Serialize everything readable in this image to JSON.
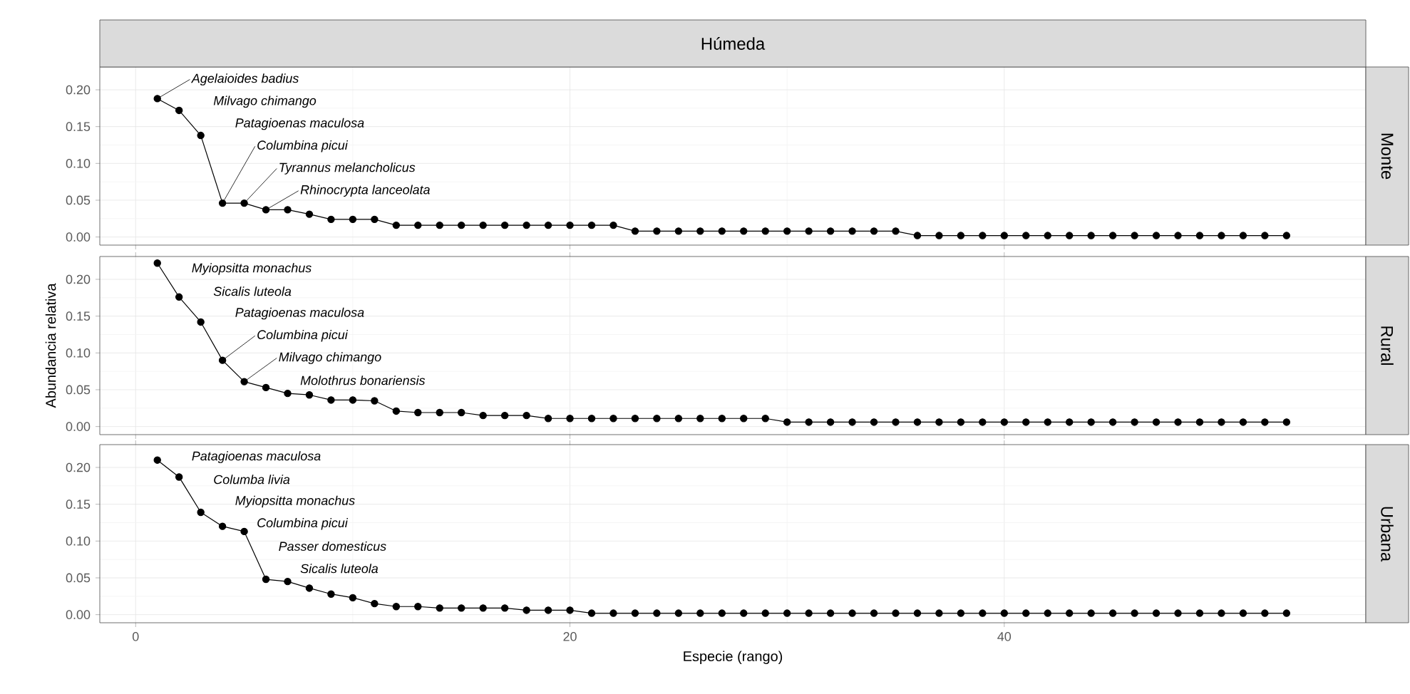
{
  "chart_data": [
    {
      "type": "line",
      "title": "Húmeda",
      "y2label": "Monte",
      "tick_labels": "y",
      "grid": true,
      "marker": "circle",
      "line_style": "solid",
      "xlim": [
        -1.65,
        56.65
      ],
      "ylim": [
        -0.011,
        0.231
      ],
      "xticks": [
        0,
        20,
        40
      ],
      "yticks": [
        {
          "value": 0,
          "label": "0.00"
        },
        {
          "value": 0.05,
          "label": "0.05"
        },
        {
          "value": 0.1,
          "label": "0.10"
        },
        {
          "value": 0.15,
          "label": "0.15"
        },
        {
          "value": 0.2,
          "label": "0.20"
        }
      ],
      "x": [
        1,
        2,
        3,
        4,
        5,
        6,
        7,
        8,
        9,
        10,
        11,
        12,
        13,
        14,
        15,
        16,
        17,
        18,
        19,
        20,
        21,
        22,
        23,
        24,
        25,
        26,
        27,
        28,
        29,
        30,
        31,
        32,
        33,
        34,
        35,
        36,
        37,
        38,
        39,
        40,
        41,
        42,
        43,
        44,
        45,
        46,
        47,
        48,
        49,
        50,
        51,
        52,
        53
      ],
      "series": [
        {
          "color": "#000000",
          "values": [
            0.188,
            0.172,
            0.138,
            0.046,
            0.046,
            0.037,
            0.037,
            0.031,
            0.024,
            0.024,
            0.024,
            0.016,
            0.016,
            0.016,
            0.016,
            0.016,
            0.016,
            0.016,
            0.016,
            0.016,
            0.016,
            0.016,
            0.008,
            0.008,
            0.008,
            0.008,
            0.008,
            0.008,
            0.008,
            0.008,
            0.008,
            0.008,
            0.008,
            0.008,
            0.008,
            0.002,
            0.002,
            0.002,
            0.002,
            0.002,
            0.002,
            0.002,
            0.002,
            0.002,
            0.002,
            0.002,
            0.002,
            0.002,
            0.002,
            0.002,
            0.002,
            0.002,
            0.002
          ]
        }
      ],
      "annotations": [
        {
          "text": "Agelaioides badius",
          "x": 1,
          "y": 0.188
        },
        {
          "text": "Milvago chimango",
          "x": 2,
          "y": 0.172
        },
        {
          "text": "Patagioenas maculosa",
          "x": 3,
          "y": 0.138
        },
        {
          "text": "Columbina picui",
          "x": 4,
          "y": 0.046
        },
        {
          "text": "Tyrannus melancholicus",
          "x": 5,
          "y": 0.046
        },
        {
          "text": "Rhinocrypta lanceolata",
          "x": 6,
          "y": 0.037
        }
      ]
    },
    {
      "type": "line",
      "y2label": "Rural",
      "ylabel": "Abundancia relativa",
      "tick_labels": "y",
      "grid": true,
      "marker": "circle",
      "line_style": "solid",
      "xlim": [
        -1.65,
        56.65
      ],
      "ylim": [
        -0.011,
        0.231
      ],
      "xticks": [
        0,
        20,
        40
      ],
      "yticks": [
        {
          "value": 0,
          "label": "0.00"
        },
        {
          "value": 0.05,
          "label": "0.05"
        },
        {
          "value": 0.1,
          "label": "0.10"
        },
        {
          "value": 0.15,
          "label": "0.15"
        },
        {
          "value": 0.2,
          "label": "0.20"
        }
      ],
      "x": [
        1,
        2,
        3,
        4,
        5,
        6,
        7,
        8,
        9,
        10,
        11,
        12,
        13,
        14,
        15,
        16,
        17,
        18,
        19,
        20,
        21,
        22,
        23,
        24,
        25,
        26,
        27,
        28,
        29,
        30,
        31,
        32,
        33,
        34,
        35,
        36,
        37,
        38,
        39,
        40,
        41,
        42,
        43,
        44,
        45,
        46,
        47,
        48,
        49,
        50,
        51,
        52,
        53
      ],
      "series": [
        {
          "color": "#000000",
          "values": [
            0.222,
            0.176,
            0.142,
            0.09,
            0.061,
            0.053,
            0.045,
            0.043,
            0.036,
            0.036,
            0.035,
            0.021,
            0.019,
            0.019,
            0.019,
            0.015,
            0.015,
            0.015,
            0.011,
            0.011,
            0.011,
            0.011,
            0.011,
            0.011,
            0.011,
            0.011,
            0.011,
            0.011,
            0.011,
            0.006,
            0.006,
            0.006,
            0.006,
            0.006,
            0.006,
            0.006,
            0.006,
            0.006,
            0.006,
            0.006,
            0.006,
            0.006,
            0.006,
            0.006,
            0.006,
            0.006,
            0.006,
            0.006,
            0.006,
            0.006,
            0.006,
            0.006,
            0.006
          ]
        }
      ],
      "annotations": [
        {
          "text": "Myiopsitta monachus",
          "x": 1,
          "y": 0.222
        },
        {
          "text": "Sicalis luteola",
          "x": 2,
          "y": 0.176
        },
        {
          "text": "Patagioenas maculosa",
          "x": 3,
          "y": 0.142
        },
        {
          "text": "Columbina picui",
          "x": 4,
          "y": 0.09
        },
        {
          "text": "Milvago chimango",
          "x": 5,
          "y": 0.061
        },
        {
          "text": "Molothrus bonariensis",
          "x": 6,
          "y": 0.053
        }
      ]
    },
    {
      "type": "line",
      "y2label": "Urbana",
      "xlabel": "Especie (rango)",
      "grid": true,
      "marker": "circle",
      "line_style": "solid",
      "xlim": [
        -1.65,
        56.65
      ],
      "ylim": [
        -0.011,
        0.231
      ],
      "xticks": [
        0,
        20,
        40
      ],
      "yticks": [
        {
          "value": 0,
          "label": "0.00"
        },
        {
          "value": 0.05,
          "label": "0.05"
        },
        {
          "value": 0.1,
          "label": "0.10"
        },
        {
          "value": 0.15,
          "label": "0.15"
        },
        {
          "value": 0.2,
          "label": "0.20"
        }
      ],
      "x": [
        1,
        2,
        3,
        4,
        5,
        6,
        7,
        8,
        9,
        10,
        11,
        12,
        13,
        14,
        15,
        16,
        17,
        18,
        19,
        20,
        21,
        22,
        23,
        24,
        25,
        26,
        27,
        28,
        29,
        30,
        31,
        32,
        33,
        34,
        35,
        36,
        37,
        38,
        39,
        40,
        41,
        42,
        43,
        44,
        45,
        46,
        47,
        48,
        49,
        50,
        51,
        52,
        53
      ],
      "series": [
        {
          "color": "#000000",
          "values": [
            0.21,
            0.187,
            0.139,
            0.12,
            0.113,
            0.048,
            0.045,
            0.036,
            0.028,
            0.023,
            0.015,
            0.011,
            0.011,
            0.009,
            0.009,
            0.009,
            0.009,
            0.006,
            0.006,
            0.006,
            0.002,
            0.002,
            0.002,
            0.002,
            0.002,
            0.002,
            0.002,
            0.002,
            0.002,
            0.002,
            0.002,
            0.002,
            0.002,
            0.002,
            0.002,
            0.002,
            0.002,
            0.002,
            0.002,
            0.002,
            0.002,
            0.002,
            0.002,
            0.002,
            0.002,
            0.002,
            0.002,
            0.002,
            0.002,
            0.002,
            0.002,
            0.002,
            0.002
          ]
        }
      ],
      "annotations": [
        {
          "text": "Patagioenas maculosa",
          "x": 1,
          "y": 0.21
        },
        {
          "text": "Columba livia",
          "x": 2,
          "y": 0.187
        },
        {
          "text": "Myiopsitta monachus",
          "x": 3,
          "y": 0.139
        },
        {
          "text": "Columbina picui",
          "x": 4,
          "y": 0.12
        },
        {
          "text": "Passer domesticus",
          "x": 5,
          "y": 0.113
        },
        {
          "text": "Sicalis luteola",
          "x": 6,
          "y": 0.048
        }
      ]
    }
  ]
}
